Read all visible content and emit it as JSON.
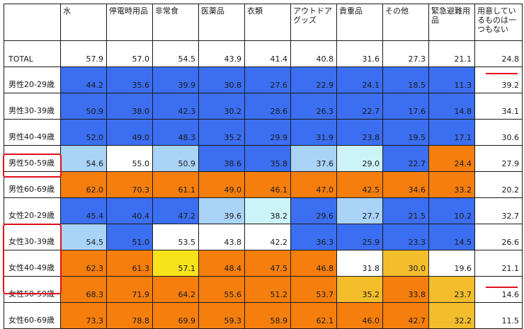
{
  "colors": {
    "blue": "#3b6ef0",
    "lightblue": "#a9d3f7",
    "paleblue": "#ccf3f8",
    "orange": "#f57e0d",
    "gold": "#f3bd2c",
    "yellow": "#f8e21a",
    "white": "#ffffff",
    "highlight": "#e0101a"
  },
  "columns": [
    "水",
    "停電時用品",
    "非常食",
    "医薬品",
    "衣類",
    "アウトドアグッズ",
    "貴重品",
    "その他",
    "緊急避難用品",
    "用意しているものは一つもない"
  ],
  "rows": [
    {
      "label": "TOTAL",
      "values": [
        "57.9",
        "57.0",
        "54.5",
        "43.9",
        "41.4",
        "40.8",
        "31.6",
        "27.3",
        "21.1",
        "24.8"
      ],
      "colors": [
        "white",
        "white",
        "white",
        "white",
        "white",
        "white",
        "white",
        "white",
        "white",
        "white"
      ]
    },
    {
      "label": "男性20-29歳",
      "values": [
        "44.2",
        "35.6",
        "39.9",
        "30.8",
        "27.6",
        "22.9",
        "24.1",
        "18.5",
        "11.3",
        "39.2"
      ],
      "colors": [
        "blue",
        "blue",
        "blue",
        "blue",
        "blue",
        "blue",
        "blue",
        "blue",
        "blue",
        "white"
      ]
    },
    {
      "label": "男性30-39歳",
      "values": [
        "50.9",
        "38.0",
        "42.3",
        "30.2",
        "28.6",
        "26.3",
        "22.7",
        "17.6",
        "14.8",
        "34.1"
      ],
      "colors": [
        "blue",
        "blue",
        "blue",
        "blue",
        "blue",
        "blue",
        "blue",
        "blue",
        "blue",
        "white"
      ]
    },
    {
      "label": "男性40-49歳",
      "values": [
        "52.0",
        "49.0",
        "48.3",
        "35.2",
        "29.9",
        "31.9",
        "23.8",
        "19.5",
        "17.1",
        "30.6"
      ],
      "colors": [
        "blue",
        "blue",
        "blue",
        "blue",
        "blue",
        "blue",
        "blue",
        "blue",
        "blue",
        "white"
      ]
    },
    {
      "label": "男性50-59歳",
      "values": [
        "54.6",
        "55.0",
        "50.9",
        "38.6",
        "35.8",
        "37.6",
        "29.0",
        "22.7",
        "24.4",
        "27.9"
      ],
      "colors": [
        "lightblue",
        "white",
        "lightblue",
        "blue",
        "blue",
        "lightblue",
        "paleblue",
        "blue",
        "orange",
        "white"
      ]
    },
    {
      "label": "男性60-69歳",
      "values": [
        "62.0",
        "70.3",
        "61.1",
        "49.0",
        "46.1",
        "47.0",
        "42.5",
        "34.6",
        "33.2",
        "20.2"
      ],
      "colors": [
        "orange",
        "orange",
        "orange",
        "orange",
        "orange",
        "orange",
        "orange",
        "orange",
        "orange",
        "white"
      ]
    },
    {
      "label": "女性20-29歳",
      "values": [
        "45.4",
        "40.4",
        "47.2",
        "39.6",
        "38.2",
        "29.6",
        "27.7",
        "21.5",
        "10.2",
        "32.7"
      ],
      "colors": [
        "blue",
        "blue",
        "blue",
        "lightblue",
        "paleblue",
        "blue",
        "lightblue",
        "blue",
        "blue",
        "white"
      ]
    },
    {
      "label": "女性30-39歳",
      "values": [
        "54.5",
        "51.0",
        "53.5",
        "43.8",
        "42.2",
        "36.3",
        "25.9",
        "23.3",
        "14.5",
        "26.6"
      ],
      "colors": [
        "lightblue",
        "blue",
        "white",
        "white",
        "white",
        "blue",
        "blue",
        "blue",
        "blue",
        "white"
      ]
    },
    {
      "label": "女性40-49歳",
      "values": [
        "62.3",
        "61.3",
        "57.1",
        "48.4",
        "47.5",
        "46.8",
        "31.8",
        "30.0",
        "19.6",
        "21.1"
      ],
      "colors": [
        "orange",
        "orange",
        "yellow",
        "orange",
        "orange",
        "orange",
        "white",
        "gold",
        "white",
        "white"
      ]
    },
    {
      "label": "女性50-59歳",
      "values": [
        "68.3",
        "71.9",
        "64.2",
        "55.6",
        "51.2",
        "53.7",
        "35.2",
        "33.8",
        "23.7",
        "14.6"
      ],
      "colors": [
        "orange",
        "orange",
        "orange",
        "orange",
        "orange",
        "orange",
        "gold",
        "orange",
        "gold",
        "white"
      ]
    },
    {
      "label": "女性60-69歳",
      "values": [
        "73.3",
        "78.8",
        "69.9",
        "59.3",
        "58.9",
        "62.1",
        "46.0",
        "42.7",
        "32.2",
        "11.5"
      ],
      "colors": [
        "orange",
        "orange",
        "orange",
        "orange",
        "orange",
        "orange",
        "orange",
        "orange",
        "gold",
        "white"
      ]
    }
  ]
}
